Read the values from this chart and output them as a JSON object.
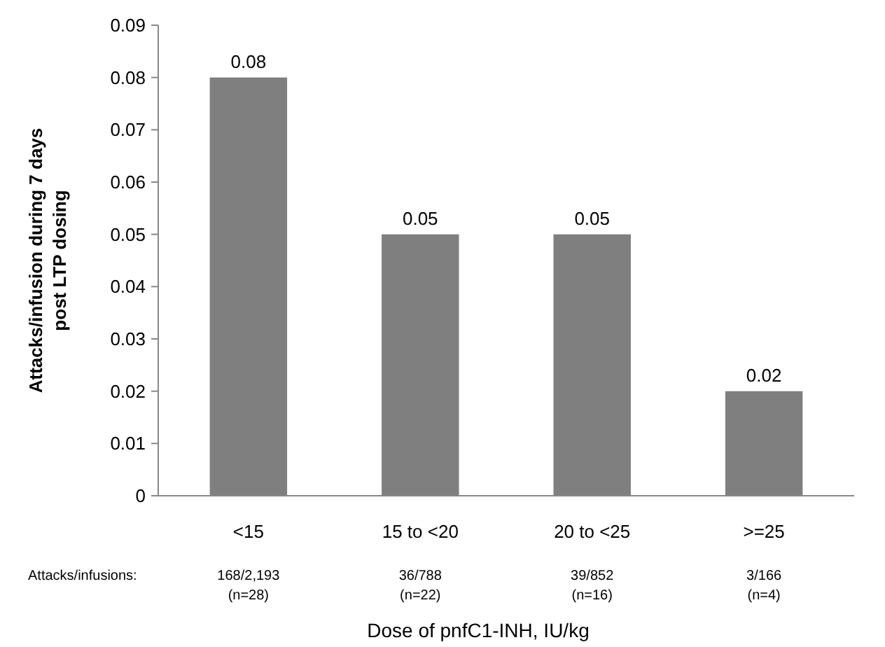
{
  "chart_data": {
    "type": "bar",
    "ylabel": "Attacks/infusion during 7 days\npost LTP dosing",
    "xlabel": "Dose of pnfC1-INH, IU/kg",
    "categories": [
      "<15",
      "15 to <20",
      "20 to <25",
      ">=25"
    ],
    "values": [
      0.08,
      0.05,
      0.05,
      0.02
    ],
    "color": "#7f7f7f",
    "data_labels": true,
    "ylim": [
      0,
      0.09
    ],
    "yticks": [
      0,
      0.01,
      0.02,
      0.03,
      0.04,
      0.05,
      0.06,
      0.07,
      0.08,
      0.09
    ],
    "grid": false,
    "annotations": [
      "Attacks/infusions:",
      "168/2,193\n(n=28)",
      "36/788\n(n=22)",
      "39/852\n(n=16)",
      "3/166\n(n=4)"
    ]
  }
}
